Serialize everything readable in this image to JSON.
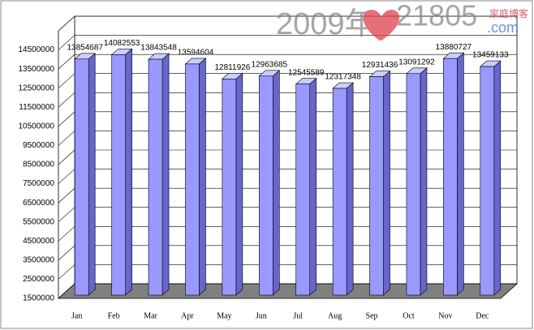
{
  "chart_data": {
    "type": "bar3d",
    "categories": [
      "Jan",
      "Feb",
      "Mar",
      "Apr",
      "May",
      "Jun",
      "Jul",
      "Aug",
      "Sep",
      "Oct",
      "Nov",
      "Dec"
    ],
    "values": [
      13854687,
      14082553,
      13843548,
      13594604,
      12811926,
      12963685,
      12545589,
      12317348,
      12931436,
      13091292,
      13880727,
      13459133
    ],
    "color": "#9999ff",
    "ylim": [
      1500000,
      15500000
    ],
    "yticks": [
      1500000,
      2500000,
      3500000,
      4500000,
      5500000,
      6500000,
      7500000,
      8500000,
      9500000,
      10500000,
      11500000,
      12500000,
      13500000,
      14500000
    ],
    "grid": true,
    "watermark": {
      "year": "2009年",
      "site": "21805",
      "domain": ".com",
      "tag": "家庭博客"
    }
  }
}
